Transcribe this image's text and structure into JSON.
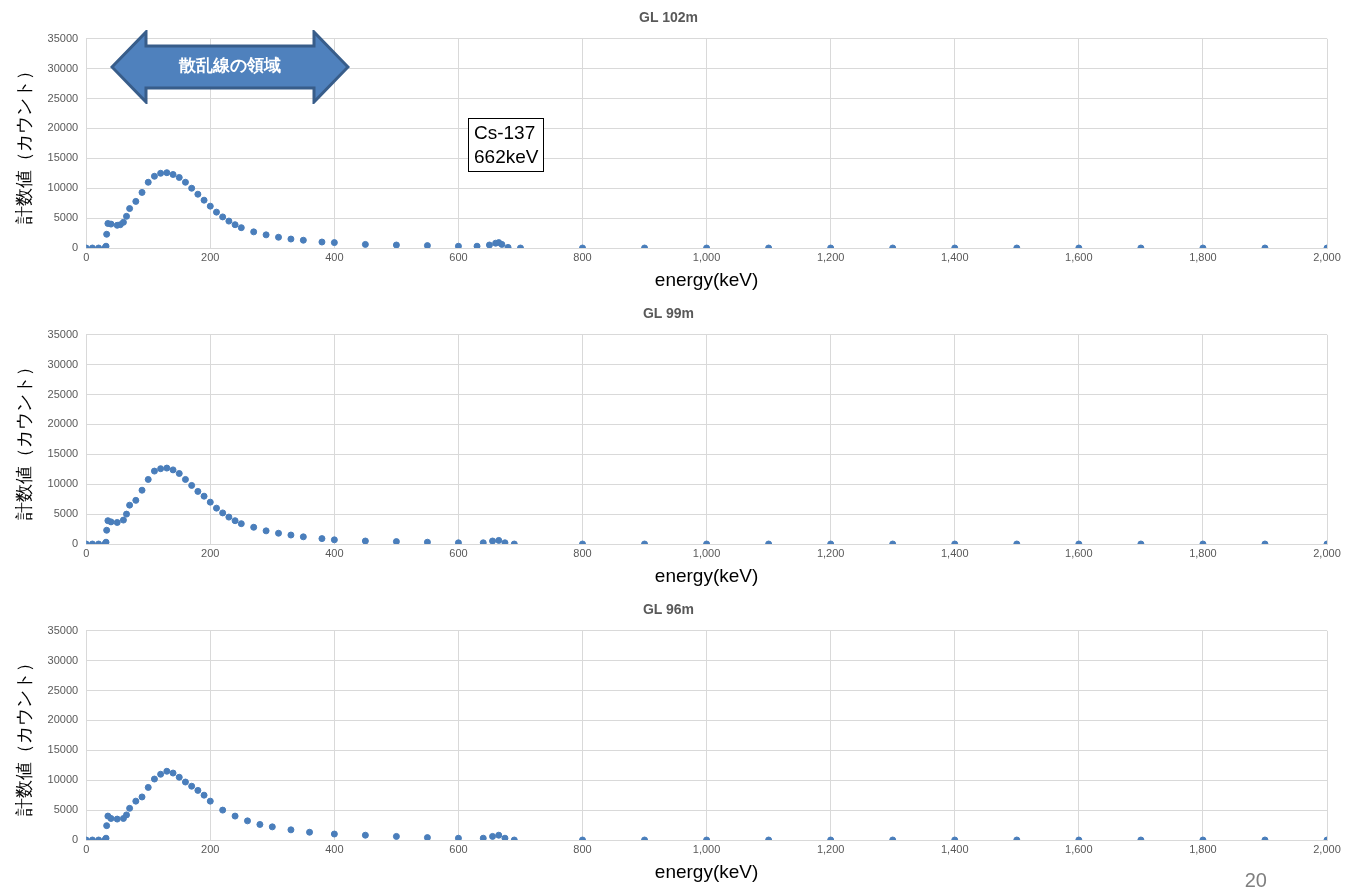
{
  "chart_data": [
    {
      "type": "scatter",
      "title": "GL 102m",
      "xlabel": "energy(keV)",
      "ylabel": "計数値（カウント）",
      "marker": "circle",
      "grid": true,
      "legend": false,
      "xlim": [
        0,
        2000
      ],
      "xticks": [
        0,
        200,
        400,
        600,
        800,
        {
          "value": 1000,
          "label": "1,000"
        },
        {
          "value": 1200,
          "label": "1,200"
        },
        {
          "value": 1400,
          "label": "1,400"
        },
        {
          "value": 1600,
          "label": "1,600"
        },
        {
          "value": 1800,
          "label": "1,800"
        },
        {
          "value": 2000,
          "label": "2,000"
        }
      ],
      "ylim": [
        0,
        35000
      ],
      "yticks": [
        0,
        5000,
        10000,
        15000,
        20000,
        25000,
        30000,
        35000
      ],
      "annotations": [
        "散乱線の領域",
        "Cs-137\n662keV"
      ],
      "series": [
        {
          "color": "#4a7ebb",
          "x": [
            0,
            10,
            20,
            30,
            32,
            33,
            35,
            40,
            50,
            55,
            60,
            65,
            70,
            80,
            90,
            100,
            110,
            120,
            130,
            140,
            150,
            160,
            170,
            180,
            190,
            200,
            210,
            220,
            230,
            240,
            250,
            270,
            290,
            310,
            330,
            350,
            380,
            400,
            450,
            500,
            550,
            600,
            630,
            650,
            660,
            665,
            670,
            680,
            700,
            800,
            900,
            1000,
            1100,
            1200,
            1300,
            1400,
            1500,
            1600,
            1700,
            1800,
            1900,
            2000
          ],
          "values": [
            0,
            0,
            0,
            0,
            300,
            2300,
            4100,
            4000,
            3800,
            3900,
            4300,
            5300,
            6600,
            7800,
            9300,
            11000,
            12000,
            12500,
            12600,
            12300,
            11800,
            11000,
            10000,
            9000,
            8000,
            7000,
            6000,
            5200,
            4500,
            3900,
            3400,
            2700,
            2200,
            1800,
            1500,
            1300,
            1000,
            900,
            600,
            500,
            400,
            300,
            300,
            500,
            800,
            900,
            600,
            100,
            0,
            0,
            0,
            0,
            0,
            0,
            0,
            0,
            0,
            0,
            0,
            0,
            0,
            0
          ]
        }
      ]
    },
    {
      "type": "scatter",
      "title": "GL 99m",
      "xlabel": "energy(keV)",
      "ylabel": "計数値（カウント）",
      "marker": "circle",
      "grid": true,
      "legend": false,
      "xlim": [
        0,
        2000
      ],
      "xticks": [
        0,
        200,
        400,
        600,
        800,
        {
          "value": 1000,
          "label": "1,000"
        },
        {
          "value": 1200,
          "label": "1,200"
        },
        {
          "value": 1400,
          "label": "1,400"
        },
        {
          "value": 1600,
          "label": "1,600"
        },
        {
          "value": 1800,
          "label": "1,800"
        },
        {
          "value": 2000,
          "label": "2,000"
        }
      ],
      "ylim": [
        0,
        35000
      ],
      "yticks": [
        0,
        5000,
        10000,
        15000,
        20000,
        25000,
        30000,
        35000
      ],
      "series": [
        {
          "color": "#4a7ebb",
          "x": [
            0,
            10,
            20,
            30,
            32,
            33,
            35,
            40,
            50,
            60,
            65,
            70,
            80,
            90,
            100,
            110,
            120,
            130,
            140,
            150,
            160,
            170,
            180,
            190,
            200,
            210,
            220,
            230,
            240,
            250,
            270,
            290,
            310,
            330,
            350,
            380,
            400,
            450,
            500,
            550,
            600,
            640,
            655,
            665,
            675,
            690,
            800,
            900,
            1000,
            1100,
            1200,
            1300,
            1400,
            1500,
            1600,
            1700,
            1800,
            1900,
            2000
          ],
          "values": [
            0,
            0,
            0,
            0,
            300,
            2300,
            3900,
            3700,
            3600,
            4000,
            5000,
            6500,
            7300,
            9000,
            10800,
            12200,
            12600,
            12700,
            12400,
            11800,
            10800,
            9800,
            8800,
            8000,
            7000,
            6000,
            5200,
            4500,
            3900,
            3400,
            2800,
            2200,
            1800,
            1500,
            1200,
            900,
            700,
            500,
            400,
            300,
            200,
            200,
            500,
            600,
            200,
            0,
            0,
            0,
            0,
            0,
            0,
            0,
            0,
            0,
            0,
            0,
            0,
            0,
            0
          ]
        }
      ]
    },
    {
      "type": "scatter",
      "title": "GL 96m",
      "xlabel": "energy(keV)",
      "ylabel": "計数値（カウント）",
      "marker": "circle",
      "grid": true,
      "legend": false,
      "xlim": [
        0,
        2000
      ],
      "xticks": [
        0,
        200,
        400,
        600,
        800,
        {
          "value": 1000,
          "label": "1,000"
        },
        {
          "value": 1200,
          "label": "1,200"
        },
        {
          "value": 1400,
          "label": "1,400"
        },
        {
          "value": 1600,
          "label": "1,600"
        },
        {
          "value": 1800,
          "label": "1,800"
        },
        {
          "value": 2000,
          "label": "2,000"
        }
      ],
      "ylim": [
        0,
        35000
      ],
      "yticks": [
        0,
        5000,
        10000,
        15000,
        20000,
        25000,
        30000,
        35000
      ],
      "annotations": [
        "20"
      ],
      "series": [
        {
          "color": "#4a7ebb",
          "x": [
            0,
            10,
            20,
            30,
            32,
            33,
            35,
            40,
            50,
            60,
            65,
            70,
            80,
            90,
            100,
            110,
            120,
            130,
            140,
            150,
            160,
            170,
            180,
            190,
            200,
            220,
            240,
            260,
            280,
            300,
            330,
            360,
            400,
            450,
            500,
            550,
            600,
            640,
            655,
            665,
            675,
            690,
            800,
            900,
            1000,
            1100,
            1200,
            1300,
            1400,
            1500,
            1600,
            1700,
            1800,
            1900,
            2000
          ],
          "values": [
            0,
            0,
            0,
            0,
            300,
            2400,
            4000,
            3600,
            3500,
            3600,
            4200,
            5300,
            6500,
            7200,
            8800,
            10200,
            11000,
            11500,
            11200,
            10500,
            9700,
            9000,
            8300,
            7500,
            6500,
            5000,
            4000,
            3200,
            2600,
            2200,
            1700,
            1300,
            1000,
            800,
            600,
            400,
            300,
            300,
            600,
            800,
            300,
            0,
            0,
            0,
            0,
            0,
            0,
            0,
            0,
            0,
            0,
            0,
            0,
            0,
            0
          ]
        }
      ]
    }
  ]
}
